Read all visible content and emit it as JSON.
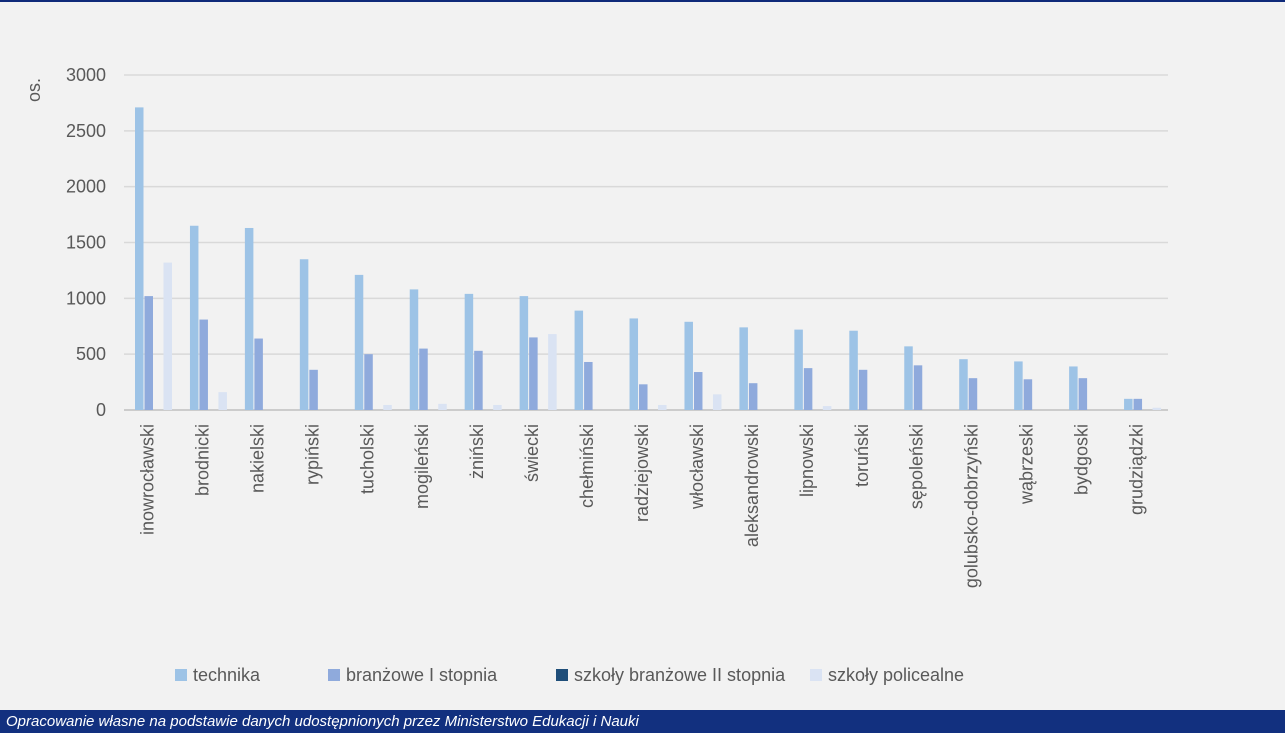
{
  "chart_data": {
    "type": "bar",
    "ylabel": "os.",
    "ylim": [
      0,
      3000
    ],
    "yticks": [
      0,
      500,
      1000,
      1500,
      2000,
      2500,
      3000
    ],
    "grid": true,
    "legend_position": "bottom",
    "categories": [
      "inowrocławski",
      "brodnicki",
      "nakielski",
      "rypiński",
      "tucholski",
      "mogileński",
      "żniński",
      "świecki",
      "chełmiński",
      "radziejowski",
      "włocławski",
      "aleksandrowski",
      "lipnowski",
      "toruński",
      "sępoleński",
      "golubsko-dobrzyński",
      "wąbrzeski",
      "bydgoski",
      "grudziądzki"
    ],
    "series": [
      {
        "name": "technika",
        "color": "#9dc3e6",
        "values": [
          2710,
          1650,
          1630,
          1350,
          1210,
          1080,
          1040,
          1020,
          890,
          820,
          790,
          740,
          720,
          710,
          570,
          455,
          435,
          390,
          100
        ]
      },
      {
        "name": "branżowe I stopnia",
        "color": "#8faadc",
        "values": [
          1020,
          810,
          640,
          360,
          500,
          550,
          530,
          650,
          430,
          230,
          340,
          240,
          375,
          360,
          400,
          285,
          275,
          285,
          100
        ]
      },
      {
        "name": "szkoły branżowe II stopnia",
        "color": "#1f4e79",
        "values": [
          0,
          0,
          0,
          0,
          0,
          0,
          0,
          0,
          0,
          0,
          0,
          0,
          0,
          0,
          0,
          0,
          0,
          0,
          0
        ]
      },
      {
        "name": "szkoły policealne",
        "color": "#dae3f3",
        "values": [
          1320,
          160,
          0,
          0,
          45,
          55,
          45,
          680,
          0,
          45,
          140,
          0,
          35,
          0,
          0,
          0,
          0,
          0,
          20
        ]
      }
    ]
  },
  "footer": {
    "source_note": "Opracowanie własne na podstawie danych udostępnionych przez Ministerstwo Edukacji i Nauki"
  }
}
